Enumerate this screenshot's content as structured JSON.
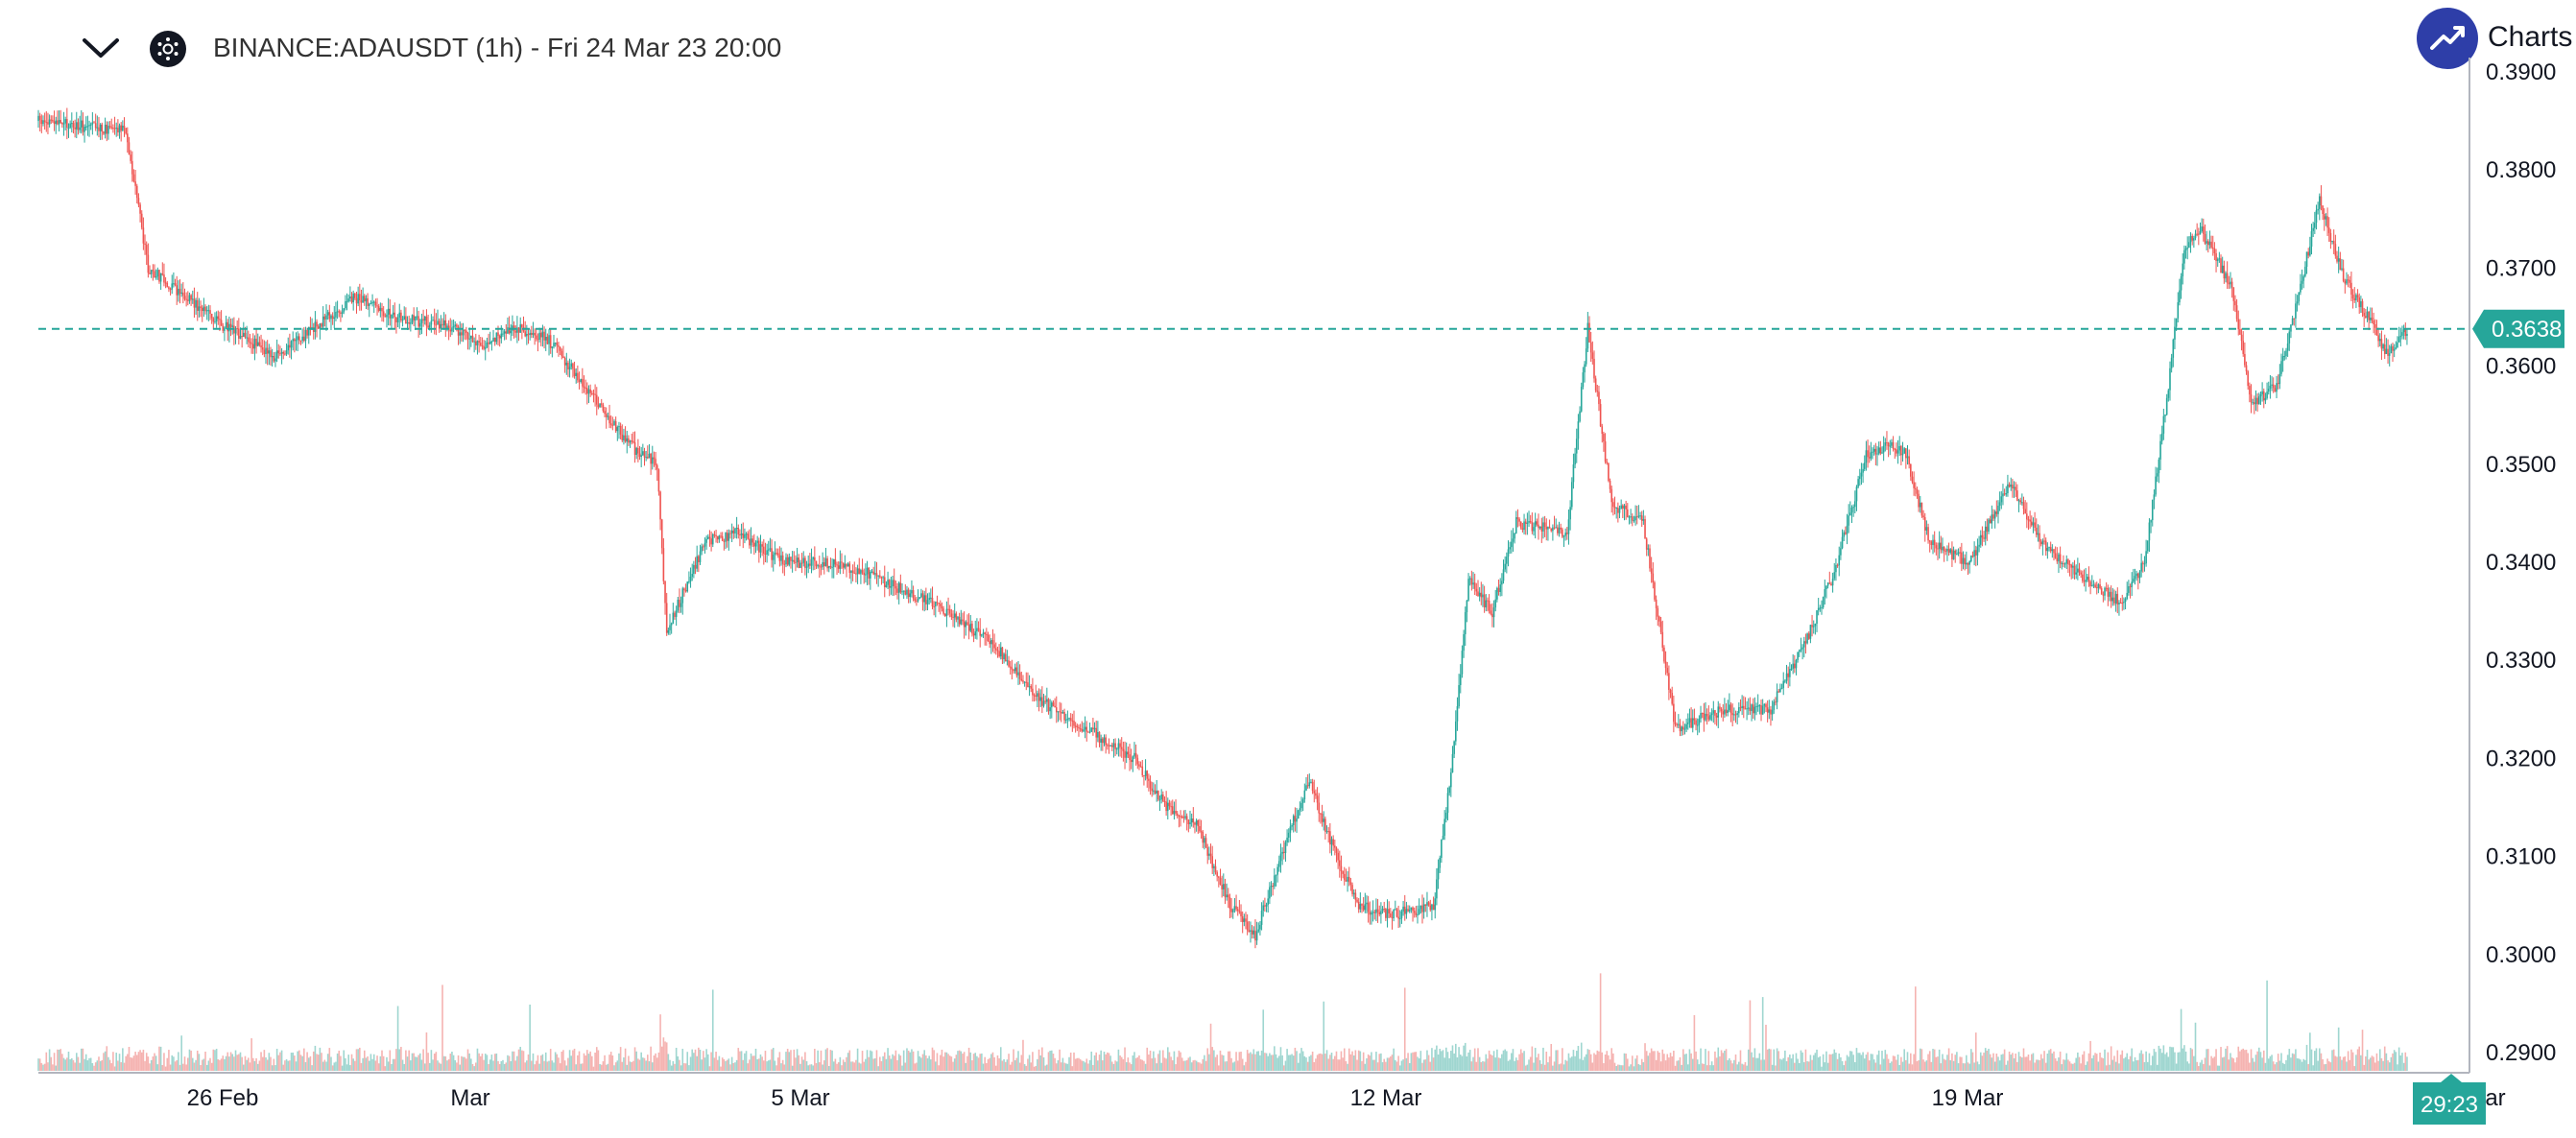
{
  "header": {
    "title": "BINANCE:ADAUSDT (1h) - Fri 24 Mar 23 20:00",
    "collapse_icon": "chevron-down-icon",
    "symbol_icon": "cardano-logo-icon",
    "brand_label": "Charts p",
    "brand_icon": "trend-up-icon"
  },
  "colors": {
    "up": "#26a69a",
    "down": "#ef5350",
    "price_line": "#26a69a",
    "brand": "#2e3ea8"
  },
  "chart_data": {
    "type": "candlestick",
    "symbol": "BINANCE:ADAUSDT",
    "interval": "1h",
    "ylim": [
      0.2885,
      0.3905
    ],
    "yticks": [
      "0.3900",
      "0.3800",
      "0.3700",
      "0.3600",
      "0.3500",
      "0.3400",
      "0.3300",
      "0.3200",
      "0.3100",
      "0.3000",
      "0.2900"
    ],
    "xticks": [
      "26 Feb",
      "Mar",
      "5 Mar",
      "12 Mar",
      "19 Mar",
      "Mar"
    ],
    "last_price": "0.3638",
    "countdown": "29:23",
    "price_path": [
      [
        0,
        0.385
      ],
      [
        26,
        0.3845
      ],
      [
        56,
        0.384
      ],
      [
        70,
        0.37
      ],
      [
        118,
        0.364
      ],
      [
        150,
        0.361
      ],
      [
        200,
        0.367
      ],
      [
        226,
        0.365
      ],
      [
        260,
        0.364
      ],
      [
        280,
        0.362
      ],
      [
        300,
        0.364
      ],
      [
        320,
        0.363
      ],
      [
        340,
        0.359
      ],
      [
        372,
        0.352
      ],
      [
        390,
        0.35
      ],
      [
        396,
        0.333
      ],
      [
        420,
        0.342
      ],
      [
        440,
        0.343
      ],
      [
        470,
        0.34
      ],
      [
        496,
        0.34
      ],
      [
        520,
        0.339
      ],
      [
        560,
        0.336
      ],
      [
        600,
        0.332
      ],
      [
        630,
        0.326
      ],
      [
        660,
        0.323
      ],
      [
        690,
        0.32
      ],
      [
        710,
        0.315
      ],
      [
        730,
        0.313
      ],
      [
        750,
        0.305
      ],
      [
        766,
        0.302
      ],
      [
        782,
        0.31
      ],
      [
        800,
        0.318
      ],
      [
        812,
        0.312
      ],
      [
        830,
        0.305
      ],
      [
        850,
        0.304
      ],
      [
        878,
        0.305
      ],
      [
        890,
        0.32
      ],
      [
        900,
        0.338
      ],
      [
        915,
        0.335
      ],
      [
        930,
        0.344
      ],
      [
        962,
        0.343
      ],
      [
        975,
        0.364
      ],
      [
        990,
        0.346
      ],
      [
        1010,
        0.344
      ],
      [
        1030,
        0.323
      ],
      [
        1060,
        0.325
      ],
      [
        1090,
        0.325
      ],
      [
        1112,
        0.332
      ],
      [
        1130,
        0.339
      ],
      [
        1150,
        0.351
      ],
      [
        1165,
        0.352
      ],
      [
        1175,
        0.351
      ],
      [
        1190,
        0.342
      ],
      [
        1215,
        0.34
      ],
      [
        1240,
        0.348
      ],
      [
        1260,
        0.342
      ],
      [
        1290,
        0.338
      ],
      [
        1310,
        0.336
      ],
      [
        1325,
        0.34
      ],
      [
        1340,
        0.358
      ],
      [
        1350,
        0.372
      ],
      [
        1360,
        0.374
      ],
      [
        1380,
        0.368
      ],
      [
        1392,
        0.356
      ],
      [
        1408,
        0.358
      ],
      [
        1420,
        0.366
      ],
      [
        1435,
        0.377
      ],
      [
        1450,
        0.369
      ],
      [
        1465,
        0.365
      ],
      [
        1478,
        0.361
      ],
      [
        1490,
        0.3638
      ]
    ],
    "visible_candles": 1490
  }
}
